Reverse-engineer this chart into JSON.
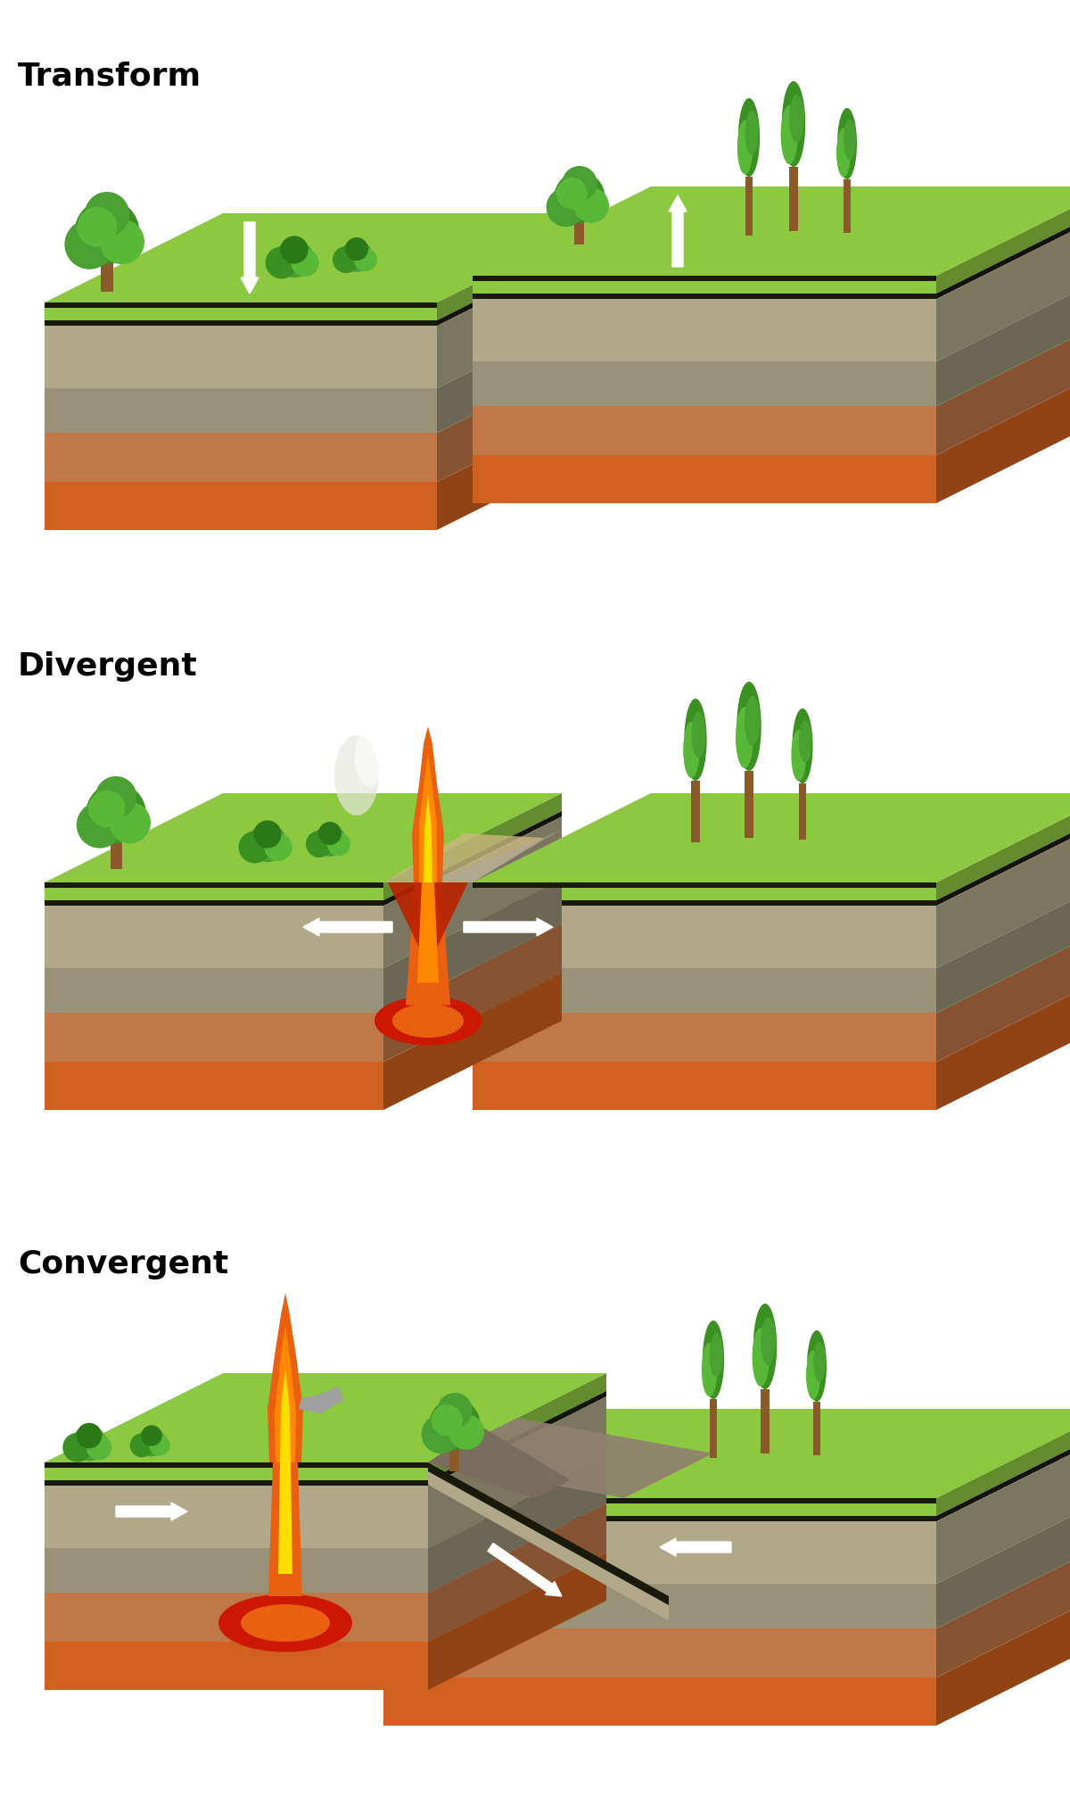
{
  "labels": [
    "Transform",
    "Divergent",
    "Convergent"
  ],
  "label_fontsize": 26,
  "background_color": "#ffffff",
  "figsize": [
    12.0,
    20.15
  ],
  "dpi": 100,
  "colors": {
    "grass_top": "#8cc840",
    "grass_dark": "#6aaa28",
    "black_layer": "#1a1a0a",
    "gray1": "#b0a888",
    "gray2": "#9a9278",
    "brown1": "#c07848",
    "orange1": "#d06020",
    "orange2": "#c85010",
    "lava_orange": "#e86010",
    "lava_bright": "#ff8800",
    "lava_yellow": "#ffdd00",
    "mantle_red": "#cc1800",
    "rift_red": "#bb2200",
    "tree_green1": "#3a9020",
    "tree_green2": "#4aa030",
    "tree_green3": "#5ab838",
    "tree_green4": "#2a7818",
    "tree_trunk": "#8b5a2a",
    "gray_wedge": "#908070",
    "sand": "#c8b880",
    "white": "#ffffff",
    "smoke_white": "#e8e8e0"
  }
}
